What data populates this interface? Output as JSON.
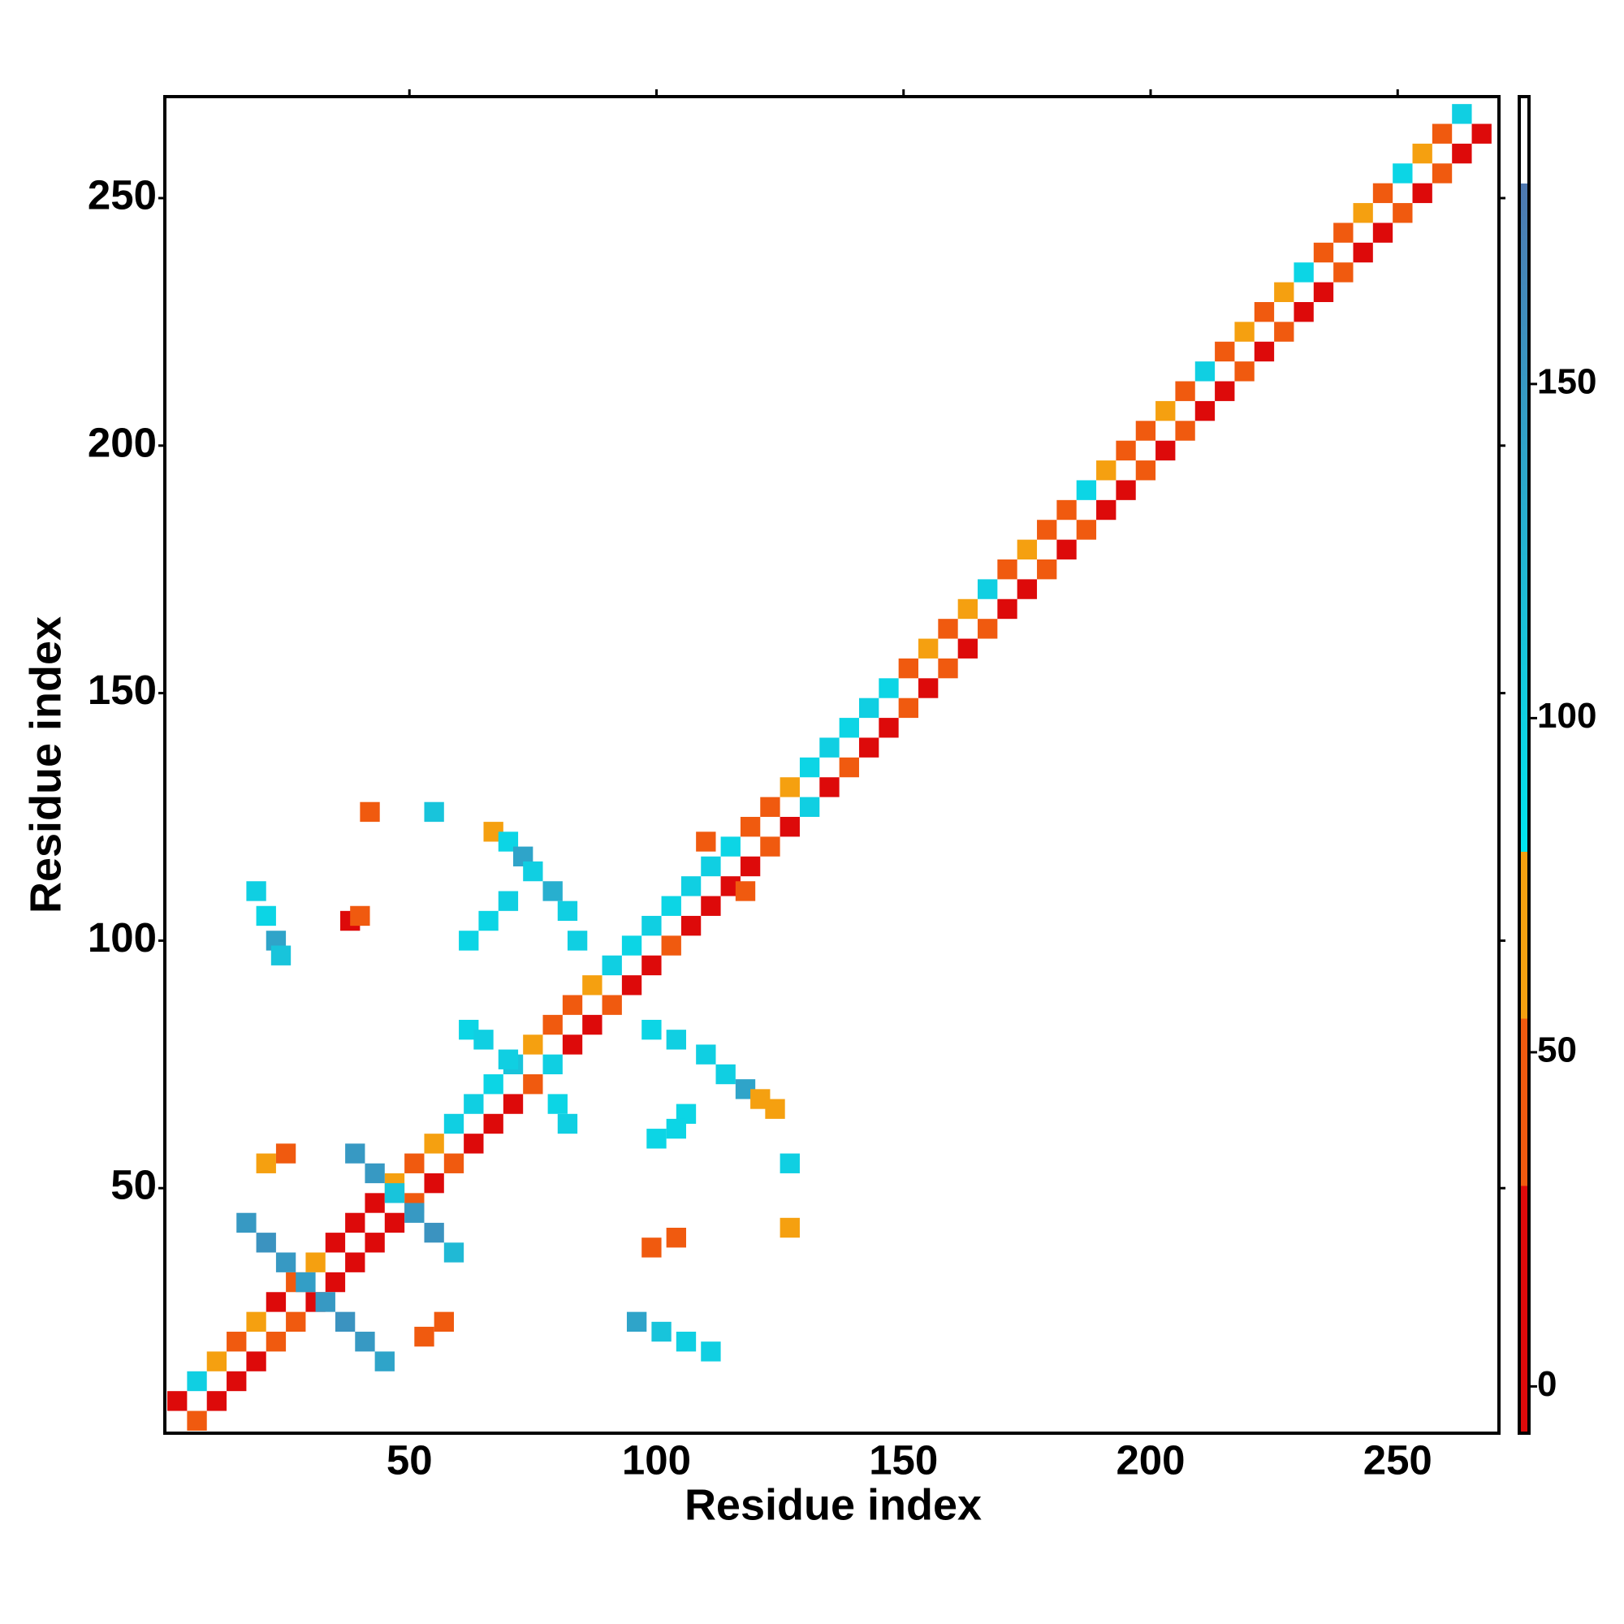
{
  "chart_data": {
    "type": "heatmap",
    "x_label": "Residue index",
    "y_label": "Residue index",
    "xlim": [
      0.5,
      270.5
    ],
    "ylim": [
      0.5,
      270.5
    ],
    "xticks": [
      50,
      100,
      150,
      200,
      250
    ],
    "yticks": [
      50,
      100,
      150,
      200,
      250
    ],
    "colorbar": {
      "lim": [
        -7,
        193
      ],
      "ticks": [
        0,
        50,
        100,
        150
      ],
      "stops": [
        {
          "value": -7,
          "color": "#dd0a0a"
        },
        {
          "value": 30,
          "color": "#dd0a0a"
        },
        {
          "value": 30,
          "color": "#f05a0f"
        },
        {
          "value": 55,
          "color": "#f05a0f"
        },
        {
          "value": 55,
          "color": "#f5a010"
        },
        {
          "value": 80,
          "color": "#f5a010"
        },
        {
          "value": 80,
          "color": "#00e5ee"
        },
        {
          "value": 180,
          "color": "#4f78b0"
        },
        {
          "value": 180,
          "color": "#ffffff"
        },
        {
          "value": 193,
          "color": "#ffffff"
        }
      ]
    },
    "cells": [
      [
        3,
        7,
        20
      ],
      [
        7,
        11,
        100
      ],
      [
        11,
        15,
        60
      ],
      [
        15,
        19,
        40
      ],
      [
        19,
        23,
        60
      ],
      [
        23,
        27,
        10
      ],
      [
        27,
        31,
        40
      ],
      [
        31,
        35,
        60
      ],
      [
        35,
        39,
        20
      ],
      [
        39,
        43,
        10
      ],
      [
        43,
        47,
        15
      ],
      [
        47,
        51,
        60
      ],
      [
        51,
        55,
        40
      ],
      [
        55,
        59,
        60
      ],
      [
        59,
        63,
        100
      ],
      [
        7,
        3,
        40
      ],
      [
        11,
        7,
        10
      ],
      [
        15,
        11,
        30
      ],
      [
        19,
        15,
        20
      ],
      [
        23,
        19,
        40
      ],
      [
        27,
        23,
        45
      ],
      [
        31,
        27,
        10
      ],
      [
        35,
        31,
        20
      ],
      [
        39,
        35,
        10
      ],
      [
        43,
        39,
        5
      ],
      [
        47,
        43,
        10
      ],
      [
        51,
        47,
        40
      ],
      [
        55,
        51,
        20
      ],
      [
        59,
        55,
        45
      ],
      [
        63,
        59,
        10
      ],
      [
        63,
        67,
        100
      ],
      [
        67,
        71,
        95
      ],
      [
        71,
        75,
        110
      ],
      [
        75,
        79,
        60
      ],
      [
        79,
        83,
        40
      ],
      [
        83,
        87,
        45
      ],
      [
        87,
        91,
        60
      ],
      [
        91,
        95,
        100
      ],
      [
        95,
        99,
        95
      ],
      [
        99,
        103,
        100
      ],
      [
        103,
        107,
        95
      ],
      [
        107,
        111,
        100
      ],
      [
        111,
        115,
        100
      ],
      [
        115,
        119,
        95
      ],
      [
        119,
        123,
        40
      ],
      [
        123,
        127,
        45
      ],
      [
        127,
        131,
        60
      ],
      [
        131,
        135,
        95
      ],
      [
        135,
        139,
        100
      ],
      [
        139,
        143,
        95
      ],
      [
        67,
        63,
        20
      ],
      [
        71,
        67,
        10
      ],
      [
        75,
        71,
        40
      ],
      [
        79,
        75,
        100
      ],
      [
        83,
        79,
        20
      ],
      [
        87,
        83,
        10
      ],
      [
        91,
        87,
        40
      ],
      [
        95,
        91,
        20
      ],
      [
        99,
        95,
        10
      ],
      [
        103,
        99,
        40
      ],
      [
        107,
        103,
        20
      ],
      [
        111,
        107,
        10
      ],
      [
        115,
        111,
        20
      ],
      [
        119,
        115,
        10
      ],
      [
        123,
        119,
        40
      ],
      [
        127,
        123,
        10
      ],
      [
        131,
        127,
        100
      ],
      [
        135,
        131,
        20
      ],
      [
        139,
        135,
        45
      ],
      [
        143,
        139,
        10
      ],
      [
        143,
        147,
        100
      ],
      [
        147,
        151,
        95
      ],
      [
        151,
        155,
        45
      ],
      [
        155,
        159,
        60
      ],
      [
        159,
        163,
        40
      ],
      [
        163,
        167,
        60
      ],
      [
        167,
        171,
        100
      ],
      [
        171,
        175,
        40
      ],
      [
        175,
        179,
        60
      ],
      [
        179,
        183,
        45
      ],
      [
        183,
        187,
        40
      ],
      [
        187,
        191,
        95
      ],
      [
        191,
        195,
        60
      ],
      [
        195,
        199,
        40
      ],
      [
        199,
        203,
        45
      ],
      [
        203,
        207,
        60
      ],
      [
        207,
        211,
        40
      ],
      [
        211,
        215,
        100
      ],
      [
        215,
        219,
        45
      ],
      [
        219,
        223,
        60
      ],
      [
        223,
        227,
        40
      ],
      [
        227,
        231,
        60
      ],
      [
        231,
        235,
        95
      ],
      [
        235,
        239,
        40
      ],
      [
        239,
        243,
        45
      ],
      [
        243,
        247,
        60
      ],
      [
        247,
        251,
        40
      ],
      [
        251,
        255,
        95
      ],
      [
        255,
        259,
        60
      ],
      [
        259,
        263,
        45
      ],
      [
        263,
        267,
        100
      ],
      [
        147,
        143,
        20
      ],
      [
        151,
        147,
        40
      ],
      [
        155,
        151,
        10
      ],
      [
        159,
        155,
        45
      ],
      [
        163,
        159,
        20
      ],
      [
        167,
        163,
        40
      ],
      [
        171,
        167,
        10
      ],
      [
        175,
        171,
        20
      ],
      [
        179,
        175,
        45
      ],
      [
        183,
        179,
        10
      ],
      [
        187,
        183,
        40
      ],
      [
        191,
        187,
        20
      ],
      [
        195,
        191,
        10
      ],
      [
        199,
        195,
        45
      ],
      [
        203,
        199,
        20
      ],
      [
        207,
        203,
        40
      ],
      [
        211,
        207,
        10
      ],
      [
        215,
        211,
        20
      ],
      [
        219,
        215,
        40
      ],
      [
        223,
        219,
        10
      ],
      [
        227,
        223,
        45
      ],
      [
        231,
        227,
        20
      ],
      [
        235,
        231,
        10
      ],
      [
        239,
        235,
        40
      ],
      [
        243,
        239,
        20
      ],
      [
        247,
        243,
        10
      ],
      [
        251,
        247,
        45
      ],
      [
        255,
        251,
        20
      ],
      [
        259,
        255,
        40
      ],
      [
        263,
        259,
        10
      ],
      [
        267,
        263,
        20
      ],
      [
        17,
        43,
        150
      ],
      [
        21,
        39,
        155
      ],
      [
        25,
        35,
        150
      ],
      [
        29,
        31,
        145
      ],
      [
        33,
        27,
        150
      ],
      [
        37,
        23,
        155
      ],
      [
        41,
        19,
        150
      ],
      [
        45,
        15,
        140
      ],
      [
        39,
        57,
        150
      ],
      [
        43,
        53,
        150
      ],
      [
        47,
        49,
        110
      ],
      [
        51,
        45,
        150
      ],
      [
        55,
        41,
        155
      ],
      [
        59,
        37,
        120
      ],
      [
        21,
        55,
        60
      ],
      [
        25,
        57,
        40
      ],
      [
        53,
        20,
        45
      ],
      [
        57,
        23,
        40
      ],
      [
        19,
        110,
        100
      ],
      [
        21,
        105,
        95
      ],
      [
        23,
        100,
        140
      ],
      [
        24,
        97,
        110
      ],
      [
        38,
        104,
        20
      ],
      [
        40,
        105,
        45
      ],
      [
        42,
        126,
        40
      ],
      [
        55,
        126,
        110
      ],
      [
        67,
        122,
        60
      ],
      [
        70,
        120,
        95
      ],
      [
        73,
        117,
        140
      ],
      [
        75,
        114,
        100
      ],
      [
        79,
        110,
        130
      ],
      [
        82,
        106,
        100
      ],
      [
        84,
        100,
        100
      ],
      [
        62,
        100,
        95
      ],
      [
        66,
        104,
        95
      ],
      [
        70,
        108,
        100
      ],
      [
        62,
        82,
        95
      ],
      [
        65,
        80,
        100
      ],
      [
        70,
        76,
        100
      ],
      [
        80,
        67,
        95
      ],
      [
        82,
        63,
        100
      ],
      [
        99,
        82,
        95
      ],
      [
        104,
        80,
        100
      ],
      [
        110,
        77,
        100
      ],
      [
        114,
        73,
        100
      ],
      [
        118,
        70,
        140
      ],
      [
        121,
        68,
        70
      ],
      [
        124,
        66,
        60
      ],
      [
        106,
        65,
        95
      ],
      [
        104,
        62,
        95
      ],
      [
        100,
        60,
        95
      ],
      [
        127,
        55,
        100
      ],
      [
        127,
        42,
        60
      ],
      [
        99,
        38,
        40
      ],
      [
        104,
        40,
        45
      ],
      [
        96,
        23,
        140
      ],
      [
        101,
        21,
        110
      ],
      [
        106,
        19,
        100
      ],
      [
        111,
        17,
        100
      ],
      [
        110,
        120,
        40
      ],
      [
        118,
        110,
        40
      ]
    ]
  }
}
